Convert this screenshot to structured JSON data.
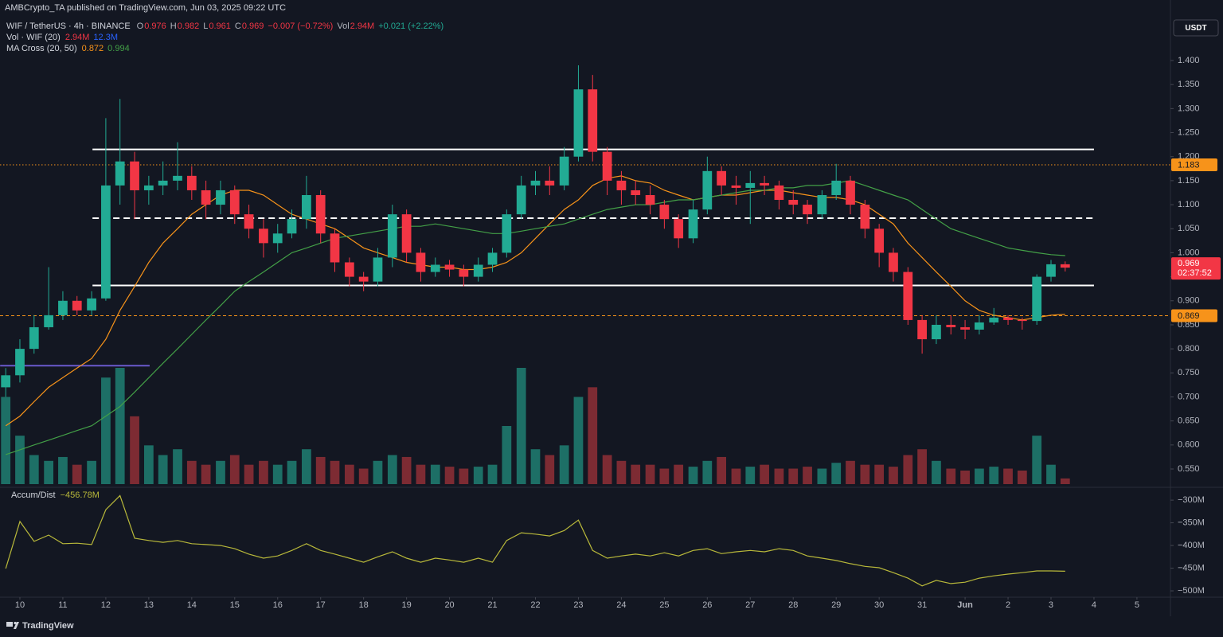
{
  "header": "AMBCrypto_TA published on TradingView.com, Jun 03, 2025 09:22 UTC",
  "legend": {
    "symbol": "WIF / TetherUS · 4h · BINANCE",
    "items": [
      {
        "label": "O",
        "value": "0.976",
        "color": "#f23645"
      },
      {
        "label": "H",
        "value": "0.982",
        "color": "#f23645"
      },
      {
        "label": "L",
        "value": "0.961",
        "color": "#f23645"
      },
      {
        "label": "C",
        "value": "0.969",
        "color": "#f23645"
      },
      {
        "value": "−0.007 (−0.72%)",
        "color": "#f23645"
      },
      {
        "label": "Vol",
        "value": "2.94M",
        "color": "#f23645"
      },
      {
        "value": "+0.021 (+2.22%)",
        "color": "#22ab94"
      }
    ],
    "indicators": [
      {
        "title": "Vol · WIF (20)",
        "values": [
          {
            "text": "2.94M",
            "color": "#f23645"
          },
          {
            "text": "12.3M",
            "color": "#2962ff"
          }
        ]
      },
      {
        "title": "MA Cross (20, 50)",
        "values": [
          {
            "text": "0.872",
            "color": "#f7931a"
          },
          {
            "text": "0.994",
            "color": "#43a047"
          }
        ]
      }
    ]
  },
  "currency": "USDT",
  "footer": "TradingView",
  "chart_data": {
    "type": "candlestick",
    "up_color": "#22ab94",
    "down_color": "#f23645",
    "volume_up_color": "#1d6f66",
    "volume_down_color": "#7d2b33",
    "xlim": [
      9.537,
      36.78
    ],
    "xticks": [
      10,
      11,
      12,
      13,
      14,
      15,
      16,
      17,
      18,
      19,
      20,
      21,
      22,
      23,
      24,
      25,
      26,
      27,
      28,
      29,
      30,
      31,
      {
        "value": 32,
        "label": "Jun"
      },
      {
        "value": 33,
        "label": "2"
      },
      {
        "value": 34,
        "label": "3"
      },
      {
        "value": 35,
        "label": "4"
      },
      {
        "value": 36,
        "label": "5"
      }
    ],
    "ylim": [
      0.5152,
      1.4928
    ],
    "yticks": [
      {
        "value": 0.55,
        "label": "0.550"
      },
      {
        "value": 0.6,
        "label": "0.600"
      },
      {
        "value": 0.65,
        "label": "0.650"
      },
      {
        "value": 0.7,
        "label": "0.700"
      },
      {
        "value": 0.75,
        "label": "0.750"
      },
      {
        "value": 0.8,
        "label": "0.800"
      },
      {
        "value": 0.85,
        "label": "0.850"
      },
      {
        "value": 0.9,
        "label": "0.900"
      },
      {
        "value": 0.95,
        "label": "0.950"
      },
      {
        "value": 1.0,
        "label": "1.000"
      },
      {
        "value": 1.05,
        "label": "1.050"
      },
      {
        "value": 1.1,
        "label": "1.100"
      },
      {
        "value": 1.15,
        "label": "1.150"
      },
      {
        "value": 1.2,
        "label": "1.200"
      },
      {
        "value": 1.25,
        "label": "1.250"
      },
      {
        "value": 1.3,
        "label": "1.300"
      },
      {
        "value": 1.35,
        "label": "1.350"
      },
      {
        "value": 1.4,
        "label": "1.400"
      }
    ],
    "grid": false,
    "x": [
      9.67,
      10,
      10.33,
      10.67,
      11,
      11.33,
      11.67,
      12,
      12.33,
      12.67,
      13,
      13.33,
      13.67,
      14,
      14.33,
      14.67,
      15,
      15.33,
      15.67,
      16,
      16.33,
      16.67,
      17,
      17.33,
      17.67,
      18,
      18.33,
      18.67,
      19,
      19.33,
      19.67,
      20,
      20.33,
      20.67,
      21,
      21.33,
      21.67,
      22,
      22.33,
      22.67,
      23,
      23.33,
      23.67,
      24,
      24.33,
      24.67,
      25,
      25.33,
      25.67,
      26,
      26.33,
      26.67,
      27,
      27.33,
      27.67,
      28,
      28.33,
      28.67,
      29,
      29.33,
      29.67,
      30,
      30.33,
      30.67,
      31,
      31.33,
      31.67,
      32,
      32.33,
      32.67,
      33,
      33.33,
      33.67,
      34,
      34.33
    ],
    "open": [
      0.72,
      0.745,
      0.8,
      0.845,
      0.87,
      0.9,
      0.88,
      0.905,
      1.14,
      1.19,
      1.13,
      1.14,
      1.15,
      1.16,
      1.13,
      1.1,
      1.13,
      1.08,
      1.05,
      1.02,
      1.04,
      1.07,
      1.12,
      1.04,
      0.98,
      0.95,
      0.94,
      0.99,
      1.08,
      1.0,
      0.96,
      0.975,
      0.965,
      0.95,
      0.975,
      1.0,
      1.08,
      1.14,
      1.15,
      1.14,
      1.2,
      1.34,
      1.21,
      1.15,
      1.13,
      1.12,
      1.1,
      1.07,
      1.03,
      1.09,
      1.17,
      1.14,
      1.135,
      1.145,
      1.14,
      1.11,
      1.1,
      1.08,
      1.12,
      1.15,
      1.1,
      1.05,
      1.0,
      0.96,
      0.86,
      0.82,
      0.85,
      0.845,
      0.84,
      0.855,
      0.865,
      0.86,
      0.858,
      0.95,
      0.976
    ],
    "high": [
      0.76,
      0.82,
      0.87,
      0.97,
      0.92,
      0.91,
      0.92,
      1.28,
      1.32,
      1.21,
      1.16,
      1.19,
      1.23,
      1.18,
      1.15,
      1.15,
      1.14,
      1.1,
      1.07,
      1.06,
      1.09,
      1.16,
      1.13,
      1.05,
      0.99,
      0.96,
      1.01,
      1.1,
      1.09,
      1.01,
      0.99,
      0.985,
      0.975,
      0.99,
      1.01,
      1.09,
      1.16,
      1.17,
      1.18,
      1.22,
      1.39,
      1.37,
      1.22,
      1.17,
      1.15,
      1.14,
      1.11,
      1.08,
      1.11,
      1.2,
      1.18,
      1.16,
      1.17,
      1.16,
      1.15,
      1.13,
      1.11,
      1.13,
      1.185,
      1.16,
      1.11,
      1.06,
      1.01,
      0.97,
      0.87,
      0.87,
      0.87,
      0.86,
      0.87,
      0.885,
      0.87,
      0.865,
      0.955,
      0.985,
      0.982
    ],
    "low": [
      0.7,
      0.73,
      0.79,
      0.84,
      0.86,
      0.87,
      0.87,
      0.9,
      1.1,
      1.07,
      1.1,
      1.12,
      1.13,
      1.11,
      1.07,
      1.08,
      1.06,
      1.03,
      0.99,
      1.0,
      1.03,
      1.05,
      1.02,
      0.96,
      0.93,
      0.92,
      0.93,
      0.97,
      0.98,
      0.94,
      0.95,
      0.95,
      0.93,
      0.94,
      0.96,
      0.99,
      1.07,
      1.12,
      1.12,
      1.13,
      1.19,
      1.19,
      1.12,
      1.1,
      1.1,
      1.08,
      1.05,
      1.01,
      1.02,
      1.08,
      1.12,
      1.1,
      1.06,
      1.12,
      1.09,
      1.08,
      1.06,
      1.07,
      1.11,
      1.08,
      1.03,
      0.97,
      0.94,
      0.85,
      0.79,
      0.81,
      0.83,
      0.82,
      0.83,
      0.85,
      0.85,
      0.84,
      0.85,
      0.94,
      0.961
    ],
    "close": [
      0.745,
      0.8,
      0.845,
      0.87,
      0.9,
      0.88,
      0.905,
      1.14,
      1.19,
      1.13,
      1.14,
      1.15,
      1.16,
      1.13,
      1.1,
      1.13,
      1.08,
      1.05,
      1.02,
      1.04,
      1.07,
      1.12,
      1.04,
      0.98,
      0.95,
      0.94,
      0.99,
      1.08,
      1.0,
      0.96,
      0.975,
      0.965,
      0.95,
      0.975,
      1.0,
      1.08,
      1.14,
      1.15,
      1.14,
      1.2,
      1.34,
      1.21,
      1.15,
      1.13,
      1.12,
      1.1,
      1.07,
      1.03,
      1.09,
      1.17,
      1.14,
      1.135,
      1.145,
      1.14,
      1.11,
      1.1,
      1.08,
      1.12,
      1.15,
      1.1,
      1.05,
      1.0,
      0.96,
      0.86,
      0.82,
      0.85,
      0.845,
      0.84,
      0.855,
      0.865,
      0.86,
      0.858,
      0.95,
      0.976,
      0.969
    ],
    "volume": [
      45,
      25,
      15,
      12,
      14,
      10,
      12,
      55,
      60,
      35,
      20,
      15,
      18,
      12,
      10,
      12,
      15,
      10,
      12,
      10,
      12,
      18,
      14,
      12,
      10,
      8,
      12,
      15,
      14,
      10,
      10,
      9,
      8,
      9,
      10,
      30,
      60,
      18,
      15,
      20,
      45,
      50,
      15,
      12,
      10,
      10,
      8,
      10,
      9,
      12,
      14,
      8,
      9,
      10,
      8,
      8,
      9,
      8,
      11,
      12,
      10,
      10,
      9,
      15,
      18,
      12,
      8,
      7,
      8,
      9,
      8,
      7,
      25,
      10,
      2.94
    ],
    "ma": [
      {
        "color": "#f7931a",
        "values": [
          0.64,
          0.66,
          0.69,
          0.72,
          0.74,
          0.76,
          0.78,
          0.82,
          0.88,
          0.93,
          0.98,
          1.02,
          1.05,
          1.08,
          1.1,
          1.12,
          1.13,
          1.13,
          1.12,
          1.1,
          1.08,
          1.07,
          1.06,
          1.05,
          1.03,
          1.01,
          1.0,
          0.99,
          0.98,
          0.975,
          0.97,
          0.97,
          0.965,
          0.965,
          0.97,
          0.98,
          1.0,
          1.03,
          1.06,
          1.09,
          1.11,
          1.14,
          1.155,
          1.16,
          1.15,
          1.145,
          1.13,
          1.12,
          1.11,
          1.115,
          1.12,
          1.12,
          1.125,
          1.13,
          1.13,
          1.125,
          1.12,
          1.115,
          1.115,
          1.11,
          1.1,
          1.08,
          1.06,
          1.02,
          0.99,
          0.96,
          0.93,
          0.9,
          0.88,
          0.87,
          0.865,
          0.86,
          0.865,
          0.87,
          0.872
        ]
      },
      {
        "color": "#43a047",
        "values": [
          0.58,
          0.59,
          0.6,
          0.61,
          0.62,
          0.63,
          0.64,
          0.66,
          0.68,
          0.71,
          0.74,
          0.77,
          0.8,
          0.83,
          0.86,
          0.89,
          0.92,
          0.94,
          0.96,
          0.98,
          1.0,
          1.01,
          1.02,
          1.03,
          1.035,
          1.04,
          1.045,
          1.05,
          1.055,
          1.055,
          1.06,
          1.055,
          1.05,
          1.045,
          1.04,
          1.04,
          1.045,
          1.05,
          1.055,
          1.06,
          1.07,
          1.08,
          1.09,
          1.095,
          1.1,
          1.1,
          1.105,
          1.11,
          1.11,
          1.115,
          1.12,
          1.125,
          1.13,
          1.13,
          1.135,
          1.135,
          1.14,
          1.14,
          1.145,
          1.15,
          1.14,
          1.13,
          1.12,
          1.11,
          1.09,
          1.07,
          1.05,
          1.04,
          1.03,
          1.02,
          1.01,
          1.005,
          1.0,
          0.996,
          0.994
        ]
      }
    ],
    "levels": [
      {
        "value": 1.215,
        "color": "#ffffff",
        "style": "solid",
        "xrange": [
          11.69,
          35.0
        ]
      },
      {
        "value": 1.072,
        "color": "#ffffff",
        "style": "dashed",
        "xrange": [
          11.69,
          35.0
        ]
      },
      {
        "value": 0.932,
        "color": "#ffffff",
        "style": "solid",
        "xrange": [
          11.69,
          35.0
        ]
      },
      {
        "value": 0.765,
        "color": "#6a5acd",
        "style": "solid",
        "xrange": [
          9.54,
          13.02
        ]
      },
      {
        "value": 1.183,
        "color": "#f7931a",
        "style": "dotted",
        "tag": true
      },
      {
        "value": 0.869,
        "color": "#f7931a",
        "style": "dashed",
        "tag": true
      }
    ],
    "last": {
      "value": 0.969,
      "countdown": "02:37:52",
      "color": "#f23645"
    },
    "indicator": {
      "title": "Accum/Dist",
      "value_text": "−456.78M",
      "color": "#b8b83a",
      "ylim": [
        -517.5,
        -277
      ],
      "yticks": [
        {
          "value": -300,
          "label": "−300M"
        },
        {
          "value": -350,
          "label": "−350M"
        },
        {
          "value": -400,
          "label": "−400M"
        },
        {
          "value": -450,
          "label": "−450M"
        },
        {
          "value": -500,
          "label": "−500M"
        }
      ],
      "values": [
        -451,
        -347,
        -391,
        -377,
        -396,
        -395,
        -398,
        -321,
        -290,
        -384,
        -389,
        -393,
        -389,
        -396,
        -398,
        -400,
        -407,
        -419,
        -428,
        -423,
        -411,
        -396,
        -411,
        -419,
        -428,
        -437,
        -425,
        -414,
        -428,
        -437,
        -428,
        -432,
        -437,
        -428,
        -437,
        -389,
        -372,
        -375,
        -379,
        -367,
        -344,
        -411,
        -428,
        -423,
        -419,
        -423,
        -416,
        -423,
        -411,
        -407,
        -418,
        -414,
        -411,
        -414,
        -407,
        -411,
        -423,
        -428,
        -433,
        -440,
        -446,
        -449,
        -460,
        -472,
        -489,
        -477,
        -484,
        -481,
        -472,
        -467,
        -463,
        -460,
        -456,
        -456,
        -456.78
      ]
    }
  }
}
